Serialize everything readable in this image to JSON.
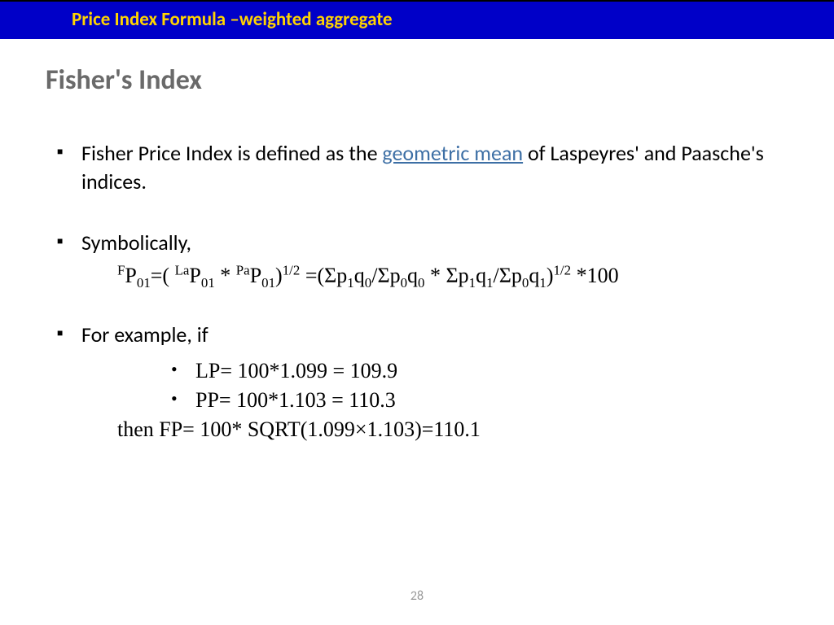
{
  "colors": {
    "header_bg": "#0000c8",
    "header_text": "#ffd400",
    "title": "#6a6a6a",
    "link": "#3d6fa5",
    "body_text": "#000000",
    "page_num": "#9a9a9a",
    "background": "#ffffff"
  },
  "fontsizes": {
    "header": 23,
    "title": 34,
    "body": 26,
    "formula": 26,
    "page_num": 16
  },
  "header": {
    "title": "Price Index Formula –weighted aggregate"
  },
  "title": "Fisher's Index",
  "bullets": {
    "b1_pre": "Fisher Price Index is defined as the ",
    "b1_link": "geometric mean",
    "b1_post": " of Laspeyres' and Paasche's indices.",
    "b2": "Symbolically,",
    "b3": "For example, if"
  },
  "formula": {
    "F": "F",
    "P": "P",
    "zero_one": "01",
    "eq_open": "=( ",
    "La": "La",
    "star": " * ",
    "Pa": "Pa",
    "close_pow": ")",
    "half": "1/2",
    "eq": " =",
    "open": "(",
    "sigma": "Σ",
    "p": "p",
    "q": "q",
    "one": "1",
    "zero": "0",
    "slash": "/",
    "close": ")",
    "times100": " *100"
  },
  "example": {
    "lp": "LP=  100*1.099 = 109.9",
    "pp": "PP=  100*1.103 = 110.3",
    "then": "then FP= 100* SQRT(1.099×1.103)=110.1"
  },
  "page_number": "28"
}
